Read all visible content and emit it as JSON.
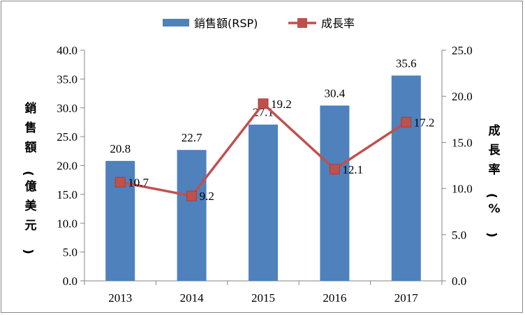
{
  "chart_data": {
    "type": "bar",
    "categories": [
      "2013",
      "2014",
      "2015",
      "2016",
      "2017"
    ],
    "series": [
      {
        "name": "銷售額(RSP)",
        "kind": "bar",
        "axis": "left",
        "color": "#4F81BD",
        "values": [
          20.8,
          22.7,
          27.1,
          30.4,
          35.6
        ],
        "labels": [
          "20.8",
          "22.7",
          "27.1",
          "30.4",
          "35.6"
        ]
      },
      {
        "name": "成長率",
        "kind": "line",
        "axis": "right",
        "color": "#C0504D",
        "values": [
          10.7,
          9.2,
          19.2,
          12.1,
          17.2
        ],
        "labels": [
          "10.7",
          "9.2",
          "19.2",
          "12.1",
          "17.2"
        ]
      }
    ],
    "ylabel": "銷售額(億美元)",
    "ylabel_right": "成長率(%)",
    "ylim": [
      0,
      40
    ],
    "ylim_right": [
      0,
      25
    ],
    "yticks": [
      "0.0",
      "5.0",
      "10.0",
      "15.0",
      "20.0",
      "25.0",
      "30.0",
      "35.0",
      "40.0"
    ],
    "yticks_right": [
      "0.0",
      "5.0",
      "10.0",
      "15.0",
      "20.0",
      "25.0"
    ],
    "legend": "top",
    "grid": false
  }
}
